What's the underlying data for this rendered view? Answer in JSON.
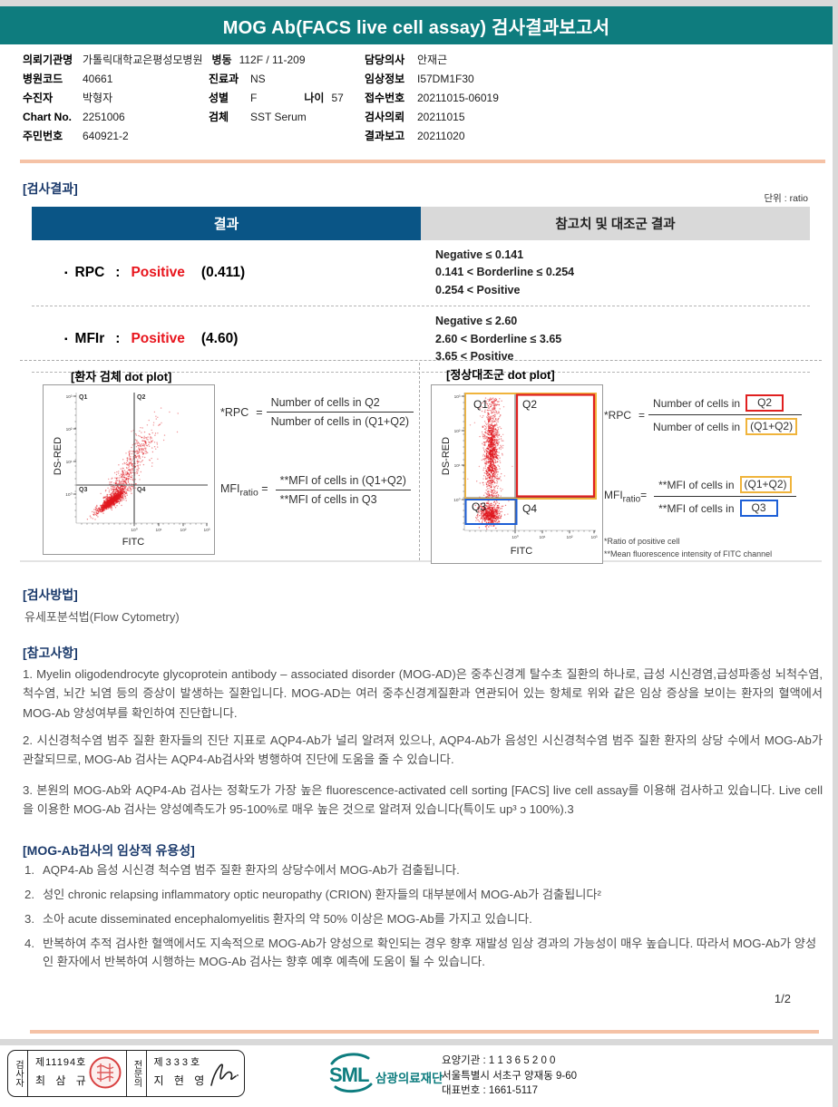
{
  "header": {
    "title": "MOG Ab(FACS live cell assay) 검사결과보고서"
  },
  "patient": {
    "rows_left": [
      {
        "label": "의뢰기관명",
        "value": "가톨릭대학교은평성모병원",
        "label2": "병동",
        "value2": "112F / 11-209"
      },
      {
        "label": "병원코드",
        "value": "40661"
      },
      {
        "label": "수진자",
        "value": "박형자"
      },
      {
        "label": "Chart No.",
        "value": "2251006"
      },
      {
        "label": "주민번호",
        "value": "640921-2"
      }
    ],
    "rows_mid": [
      {
        "label": "진료과",
        "value": "NS"
      },
      {
        "label": "성별",
        "value": "F",
        "label2": "나이",
        "value2": "57"
      },
      {
        "label": "검체",
        "value": "SST Serum"
      }
    ],
    "rows_right": [
      {
        "label": "담당의사",
        "value": "안재근"
      },
      {
        "label": "임상정보",
        "value": "I57DM1F30"
      },
      {
        "label": "접수번호",
        "value": "20211015-06019"
      },
      {
        "label": "검사의뢰",
        "value": "20211015"
      },
      {
        "label": "결과보고",
        "value": "20211020"
      }
    ]
  },
  "results": {
    "section_title": "[검사결과]",
    "unit_note": "단위 : ratio",
    "header": {
      "result": "결과",
      "reference": "참고치 및 대조군 결과"
    },
    "rows": [
      {
        "bullet": "▪",
        "name": "RPC",
        "colon": ":",
        "status": "Positive",
        "value": "(0.411)",
        "ref_lines": [
          "Negative ≤ 0.141",
          "0.141 < Borderline ≤ 0.254",
          "0.254 < Positive"
        ]
      },
      {
        "bullet": "▪",
        "name": "MFIr",
        "colon": ":",
        "status": "Positive",
        "value": "(4.60)",
        "ref_lines": [
          "Negative ≤ 2.60",
          "2.60 < Borderline ≤ 3.65",
          "3.65 < Positive"
        ]
      }
    ]
  },
  "plots": {
    "patient": {
      "title": "[환자 검체 dot plot]",
      "x_label": "FITC",
      "y_label": "DS-RED",
      "q1": "Q1",
      "q2": "Q2",
      "q3": "Q3",
      "q4": "Q4"
    },
    "control": {
      "title": "[정상대조군 dot plot]",
      "x_label": "FITC",
      "y_label": "DS-RED",
      "q1": "Q1",
      "q2": "Q2",
      "q3": "Q3",
      "q4": "Q4"
    },
    "x_ticks": [
      "10⁰",
      "10¹",
      "10²",
      "10³"
    ],
    "y_ticks": [
      "10³",
      "10²",
      "10¹",
      "10⁰"
    ],
    "formulas_left": {
      "rpc_label": "*RPC",
      "equals": "=",
      "rpc_num": "Number of cells in Q2",
      "rpc_den": "Number of cells in (Q1+Q2)",
      "mfi_label": "MFI",
      "mfi_sub": "ratio",
      "mfi_eq": "=",
      "mfi_num": "**MFI of cells in (Q1+Q2)",
      "mfi_den": "**MFI of cells in Q3"
    },
    "formulas_right": {
      "rpc_label": "*RPC",
      "equals": "=",
      "rpc_num_text": "Number of cells in",
      "rpc_num_box": "Q2",
      "rpc_den_text": "Number of cells in",
      "rpc_den_box": "(Q1+Q2)",
      "mfi_label": "MFI",
      "mfi_sub": "ratio",
      "mfi_eq": "=",
      "mfi_num_text": "**MFI of cells in",
      "mfi_num_box": "(Q1+Q2)",
      "mfi_den_text": "**MFI of cells in",
      "mfi_den_box": "Q3",
      "footnote1": "*Ratio of positive cell",
      "footnote2": "**Mean  fluorescence intensity of FITC channel"
    }
  },
  "method": {
    "section_title": "[검사방법]",
    "text": "유세포분석법(Flow Cytometry)"
  },
  "notes": {
    "section_title": "[참고사항]",
    "paragraphs": [
      "1. Myelin oligodendrocyte glycoprotein antibody – associated disorder (MOG-AD)은 중추신경계 탈수초 질환의 하나로, 급성 시신경염,급성파종성 뇌척수염, 척수염, 뇌간 뇌염 등의 증상이 발생하는 질환입니다. MOG-AD는 여러 중추신경계질환과 연관되어 있는 항체로 위와 같은 임상 증상을 보이는 환자의 혈액에서 MOG-Ab 양성여부를 확인하여 진단합니다.",
      "2. 시신경척수염 범주 질환 환자들의 진단 지표로 AQP4-Ab가 널리 알려져 있으나, AQP4-Ab가 음성인 시신경척수염 범주 질환 환자의 상당 수에서 MOG-Ab가 관찰되므로, MOG-Ab 검사는 AQP4-Ab검사와 병행하여 진단에 도움을 줄 수 있습니다.",
      "3. 본원의 MOG-Ab와 AQP4-Ab 검사는 정확도가 가장 높은 fluorescence-activated cell sorting [FACS] live cell assay를 이용해 검사하고 있습니다. Live cell을 이용한 MOG-Ab 검사는 양성예측도가 95-100%로 매우 높은 것으로 알려져 있습니다(특이도 up³ ɔ 100%).3"
    ]
  },
  "usefulness": {
    "section_title": "[MOG-Ab검사의 임상적 유용성]",
    "items": [
      {
        "num": "1.",
        "text": "AQP4-Ab 음성 시신경 척수염 범주 질환 환자의 상당수에서 MOG-Ab가 검출됩니다."
      },
      {
        "num": "2.",
        "text": "성인 chronic relapsing inflammatory optic neuropathy (CRION) 환자들의 대부분에서 MOG-Ab가 검출됩니다²"
      },
      {
        "num": "3.",
        "text": "소아 acute disseminated encephalomyelitis 환자의 약 50% 이상은 MOG-Ab를 가지고 있습니다."
      },
      {
        "num": "4.",
        "text": "반복하여 추적 검사한 혈액에서도 지속적으로 MOG-Ab가 양성으로 확인되는 경우 향후 재발성 임상 경과의 가능성이 매우 높습니다. 따라서 MOG-Ab가 양성인 환자에서 반복하여 시행하는 MOG-Ab 검사는 향후 예후 예측에 도움이 될 수 있습니다."
      }
    ]
  },
  "page_number": "1/2",
  "footer": {
    "examiner_role": "검사자",
    "examiner_cert": "제11194호",
    "examiner_name": "최 삼 규",
    "specialist_role": "전문의",
    "specialist_cert": "제333호",
    "specialist_name": "지 현 영",
    "logo_text": "SML",
    "org_name": "삼광의료재단",
    "address_line1": "요양기관 : 1 1 3 6 5 2 0 0",
    "address_line2": "서울특별시 서초구 양재동 9-60",
    "address_line3": "대표번호 : 1661-5117"
  },
  "colors": {
    "teal": "#0e7c7e",
    "header_blue": "#0a5586",
    "positive_red": "#e8151d",
    "salmon": "#f5c2a6",
    "box_red": "#e02020",
    "box_orange": "#f0b43c",
    "box_blue": "#1d5fd6"
  }
}
